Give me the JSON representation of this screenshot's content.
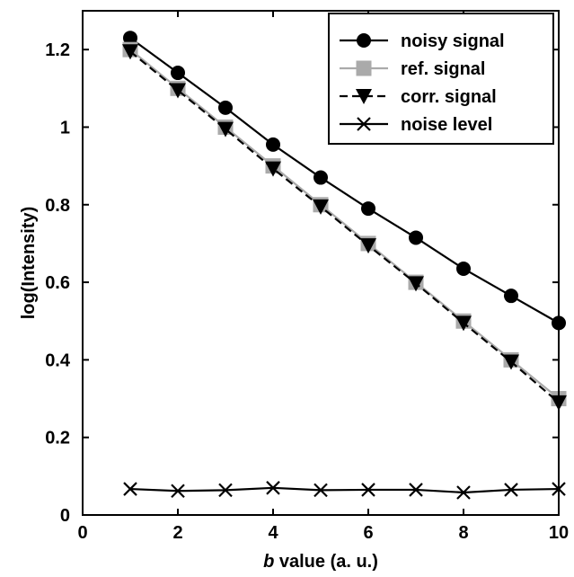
{
  "chart_data": {
    "type": "line",
    "title": "",
    "xlabel_italic": "b",
    "xlabel_rest": " value (a. u.)",
    "ylabel": "log(Intensity)",
    "xlim": [
      0,
      10
    ],
    "ylim": [
      0,
      1.3
    ],
    "x_ticks": [
      0,
      2,
      4,
      6,
      8,
      10
    ],
    "x_tick_labels": [
      "0",
      "2",
      "4",
      "6",
      "8",
      "10"
    ],
    "y_ticks": [
      0,
      0.2,
      0.4,
      0.6,
      0.8,
      1.0,
      1.2
    ],
    "y_tick_labels": [
      "0",
      "0.2",
      "0.4",
      "0.6",
      "0.8",
      "1",
      "1.2"
    ],
    "grid": false,
    "legend_position": "top-right",
    "x": [
      1,
      2,
      3,
      4,
      5,
      6,
      7,
      8,
      9,
      10
    ],
    "series": [
      {
        "name": "noisy signal",
        "marker": "circle",
        "color": "#000000",
        "line_style": "solid",
        "values": [
          1.23,
          1.14,
          1.05,
          0.955,
          0.87,
          0.79,
          0.715,
          0.635,
          0.565,
          0.495
        ]
      },
      {
        "name": "ref. signal",
        "marker": "square",
        "color": "#aaaaaa",
        "line_style": "solid",
        "values": [
          1.2,
          1.1,
          1.0,
          0.9,
          0.8,
          0.7,
          0.6,
          0.5,
          0.4,
          0.3
        ]
      },
      {
        "name": "corr. signal",
        "marker": "triangle-down",
        "color": "#000000",
        "line_style": "dashed",
        "values": [
          1.195,
          1.095,
          0.995,
          0.893,
          0.795,
          0.695,
          0.597,
          0.495,
          0.395,
          0.29
        ]
      },
      {
        "name": "noise level",
        "marker": "x",
        "color": "#000000",
        "line_style": "solid",
        "values": [
          0.067,
          0.062,
          0.064,
          0.07,
          0.064,
          0.065,
          0.065,
          0.058,
          0.065,
          0.067
        ]
      }
    ]
  }
}
